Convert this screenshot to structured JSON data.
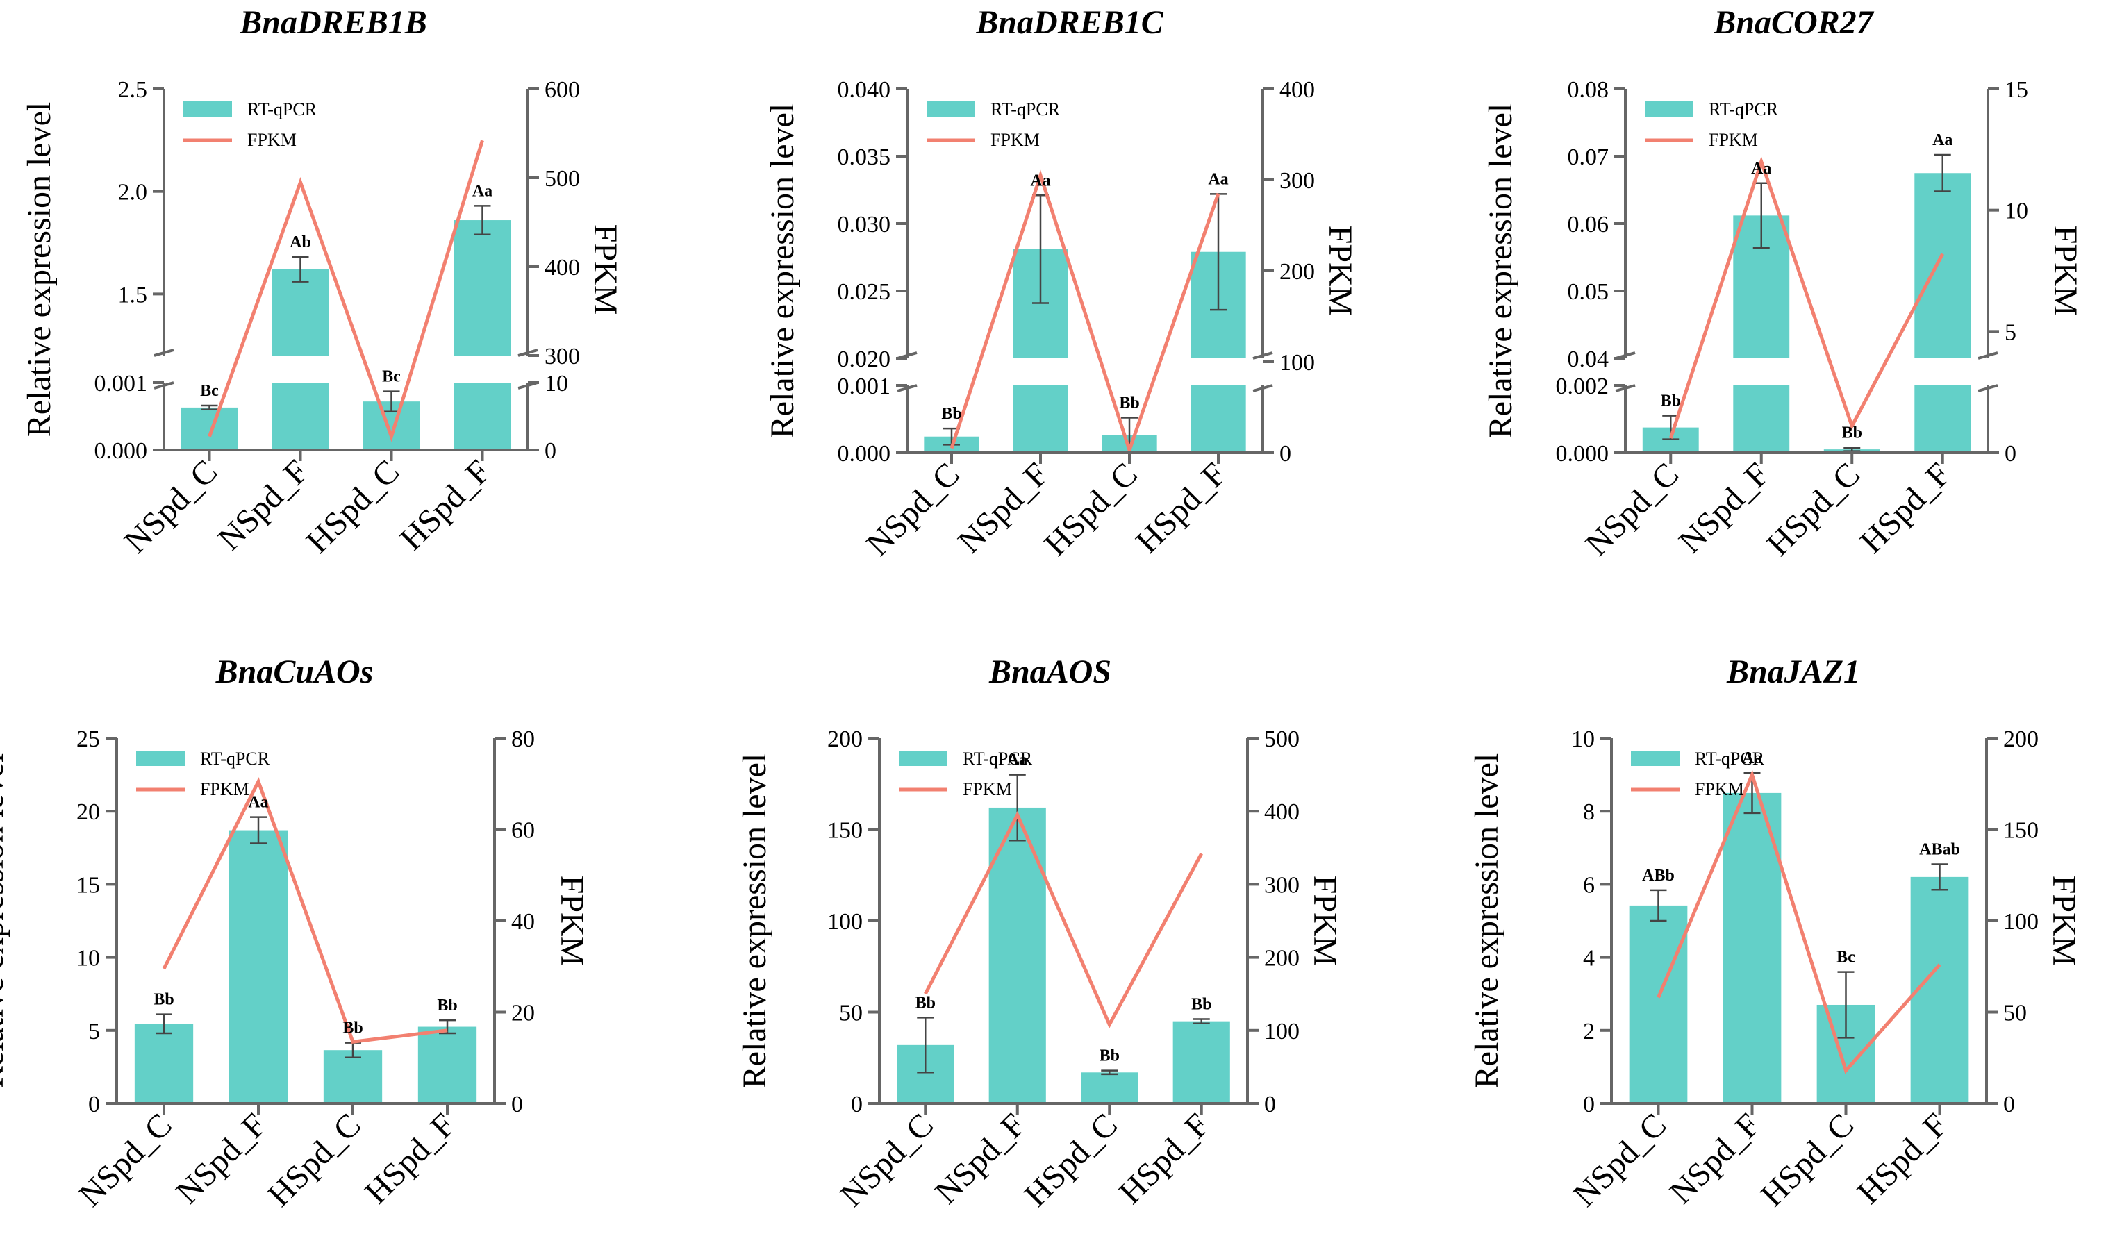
{
  "chart_data": [
    {
      "type": "bar",
      "title": "BnaDREB1B",
      "categories": [
        "NSpd_C",
        "NSpd_F",
        "HSpd_C",
        "HSpd_F"
      ],
      "ylabel": "Relative expression level",
      "y2label": "FPKM",
      "legend": [
        "RT-qPCR",
        "FPKM"
      ],
      "ylim_lower": [
        0,
        0.001
      ],
      "ylim_upper": [
        1.2,
        2.5
      ],
      "yticks_lower": [
        "0.000",
        "0.001"
      ],
      "yticks_upper": [
        "1.5",
        "2.0",
        "2.5"
      ],
      "y2lim_lower": [
        0,
        10
      ],
      "y2lim_upper": [
        300,
        600
      ],
      "y2ticks_lower": [
        "0",
        "10"
      ],
      "y2ticks_upper": [
        "300",
        "400",
        "500",
        "600"
      ],
      "series": [
        {
          "name": "RT-qPCR",
          "values": [
            0.00063,
            1.62,
            0.00072,
            1.86
          ],
          "errors": [
            3e-05,
            0.06,
            0.00015,
            0.07
          ]
        },
        {
          "name": "FPKM",
          "values": [
            2,
            495,
            2,
            542
          ]
        }
      ],
      "labels": [
        "Bc",
        "Ab",
        "Bc",
        "Aa"
      ]
    },
    {
      "type": "bar",
      "title": "BnaDREB1C",
      "categories": [
        "NSpd_C",
        "NSpd_F",
        "HSpd_C",
        "HSpd_F"
      ],
      "ylabel": "Relative expression level",
      "y2label": "FPKM",
      "legend": [
        "RT-qPCR",
        "FPKM"
      ],
      "ylim_lower": [
        0,
        0.001
      ],
      "ylim_upper": [
        0.02,
        0.04
      ],
      "yticks_lower": [
        "0.000",
        "0.001"
      ],
      "yticks_upper": [
        "0.020",
        "0.025",
        "0.030",
        "0.035",
        "0.040"
      ],
      "y2lim": [
        0,
        400
      ],
      "y2ticks": [
        "0",
        "100",
        "200",
        "300",
        "400"
      ],
      "series": [
        {
          "name": "RT-qPCR",
          "values": [
            0.00024,
            0.0281,
            0.00026,
            0.0279
          ],
          "errors": [
            0.00012,
            0.004,
            0.00026,
            0.0043
          ]
        },
        {
          "name": "FPKM",
          "values": [
            5,
            305,
            3,
            285
          ]
        }
      ],
      "labels": [
        "Bb",
        "Aa",
        "Bb",
        "Aa"
      ]
    },
    {
      "type": "bar",
      "title": "BnaCOR27",
      "categories": [
        "NSpd_C",
        "NSpd_F",
        "HSpd_C",
        "HSpd_F"
      ],
      "ylabel": "Relative expression level",
      "y2label": "FPKM",
      "legend": [
        "RT-qPCR",
        "FPKM"
      ],
      "ylim_lower": [
        0,
        0.002
      ],
      "ylim_upper": [
        0.04,
        0.08
      ],
      "yticks_lower": [
        "0.000",
        "0.002"
      ],
      "yticks_upper": [
        "0.04",
        "0.05",
        "0.06",
        "0.07",
        "0.08"
      ],
      "y2lim": [
        0,
        15
      ],
      "y2ticks": [
        "0",
        "5",
        "10",
        "15"
      ],
      "series": [
        {
          "name": "RT-qPCR",
          "values": [
            0.00075,
            0.0612,
            0.0001,
            0.0675
          ],
          "errors": [
            0.00035,
            0.0048,
            5e-05,
            0.0027
          ]
        },
        {
          "name": "FPKM",
          "values": [
            0.6,
            12,
            1.1,
            8.2
          ]
        }
      ],
      "labels": [
        "Bb",
        "Aa",
        "Bb",
        "Aa"
      ]
    },
    {
      "type": "bar",
      "title": "BnaCuAOs",
      "categories": [
        "NSpd_C",
        "NSpd_F",
        "HSpd_C",
        "HSpd_F"
      ],
      "ylabel": "Relative expression level",
      "y2label": "FPKM",
      "legend": [
        "RT-qPCR",
        "FPKM"
      ],
      "ylim": [
        0,
        25
      ],
      "yticks": [
        "0",
        "5",
        "10",
        "15",
        "20",
        "25"
      ],
      "y2lim": [
        0,
        80
      ],
      "y2ticks": [
        "0",
        "20",
        "40",
        "60",
        "80"
      ],
      "series": [
        {
          "name": "RT-qPCR",
          "values": [
            5.45,
            18.7,
            3.65,
            5.25
          ],
          "errors": [
            0.65,
            0.9,
            0.5,
            0.45
          ]
        },
        {
          "name": "FPKM",
          "values": [
            29.5,
            70.5,
            13.5,
            16
          ]
        }
      ],
      "labels": [
        "Bb",
        "Aa",
        "Bb",
        "Bb"
      ]
    },
    {
      "type": "bar",
      "title": "BnaAOS",
      "categories": [
        "NSpd_C",
        "NSpd_F",
        "HSpd_C",
        "HSpd_F"
      ],
      "ylabel": "Relative expression level",
      "y2label": "FPKM",
      "legend": [
        "RT-qPCR",
        "FPKM"
      ],
      "ylim": [
        0,
        200
      ],
      "yticks": [
        "0",
        "50",
        "100",
        "150",
        "200"
      ],
      "y2lim": [
        0,
        500
      ],
      "y2ticks": [
        "0",
        "100",
        "200",
        "300",
        "400",
        "500"
      ],
      "series": [
        {
          "name": "RT-qPCR",
          "values": [
            32,
            162,
            17,
            45
          ],
          "errors": [
            15,
            18,
            1,
            1.2
          ]
        },
        {
          "name": "FPKM",
          "values": [
            150,
            395,
            108,
            342
          ]
        }
      ],
      "labels": [
        "Bb",
        "Aa",
        "Bb",
        "Bb"
      ]
    },
    {
      "type": "bar",
      "title": "BnaJAZ1",
      "categories": [
        "NSpd_C",
        "NSpd_F",
        "HSpd_C",
        "HSpd_F"
      ],
      "ylabel": "Relative expression level",
      "y2label": "FPKM",
      "legend": [
        "RT-qPCR",
        "FPKM"
      ],
      "ylim": [
        0,
        10
      ],
      "yticks": [
        "0",
        "2",
        "4",
        "6",
        "8",
        "10"
      ],
      "y2lim": [
        0,
        200
      ],
      "y2ticks": [
        "0",
        "50",
        "100",
        "150",
        "200"
      ],
      "series": [
        {
          "name": "RT-qPCR",
          "values": [
            5.42,
            8.5,
            2.7,
            6.2
          ],
          "errors": [
            0.42,
            0.55,
            0.9,
            0.35
          ]
        },
        {
          "name": "FPKM",
          "values": [
            58,
            180,
            18,
            76
          ]
        }
      ],
      "labels": [
        "ABb",
        "Aa",
        "Bc",
        "ABab"
      ]
    }
  ]
}
